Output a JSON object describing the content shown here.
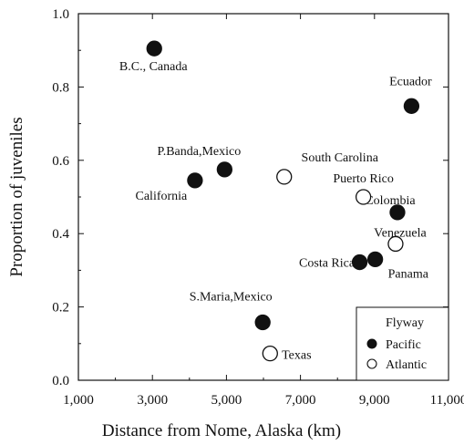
{
  "chart_data": {
    "type": "scatter",
    "xlabel": "Distance from Nome, Alaska (km)",
    "ylabel": "Proportion of juveniles",
    "xlim": [
      1000,
      11000
    ],
    "ylim": [
      0.0,
      1.0
    ],
    "x_ticks": [
      1000,
      3000,
      5000,
      7000,
      9000,
      11000
    ],
    "x_tick_labels": [
      "1,000",
      "3,000",
      "5,000",
      "7,000",
      "9,000",
      "11,000"
    ],
    "y_ticks": [
      0.0,
      0.2,
      0.4,
      0.6,
      0.8,
      1.0
    ],
    "y_tick_labels": [
      "0.0",
      "0.2",
      "0.4",
      "0.6",
      "0.8",
      "1.0"
    ],
    "grid": false,
    "legend": {
      "title": "Flyway",
      "position": "bottom-right",
      "entries": [
        {
          "label": "Pacific",
          "marker": "filled"
        },
        {
          "label": "Atlantic",
          "marker": "open"
        }
      ]
    },
    "series": [
      {
        "name": "Pacific",
        "marker": "filled",
        "points": [
          {
            "label": "B.C., Canada",
            "x": 3050,
            "y": 0.905
          },
          {
            "label": "California",
            "x": 4150,
            "y": 0.545
          },
          {
            "label": "P.Banda,Mexico",
            "x": 4950,
            "y": 0.575
          },
          {
            "label": "S.Maria,Mexico",
            "x": 5980,
            "y": 0.158
          },
          {
            "label": "Costa Rica",
            "x": 8600,
            "y": 0.322
          },
          {
            "label": "Panama",
            "x": 9020,
            "y": 0.33
          },
          {
            "label": "Colombia",
            "x": 9620,
            "y": 0.458
          },
          {
            "label": "Ecuador",
            "x": 10000,
            "y": 0.748
          }
        ]
      },
      {
        "name": "Atlantic",
        "marker": "open",
        "points": [
          {
            "label": "South Carolina",
            "x": 6560,
            "y": 0.555
          },
          {
            "label": "Texas",
            "x": 6180,
            "y": 0.073
          },
          {
            "label": "Puerto Rico",
            "x": 8700,
            "y": 0.5
          },
          {
            "label": "Venezuela",
            "x": 9570,
            "y": 0.372
          }
        ]
      }
    ]
  }
}
